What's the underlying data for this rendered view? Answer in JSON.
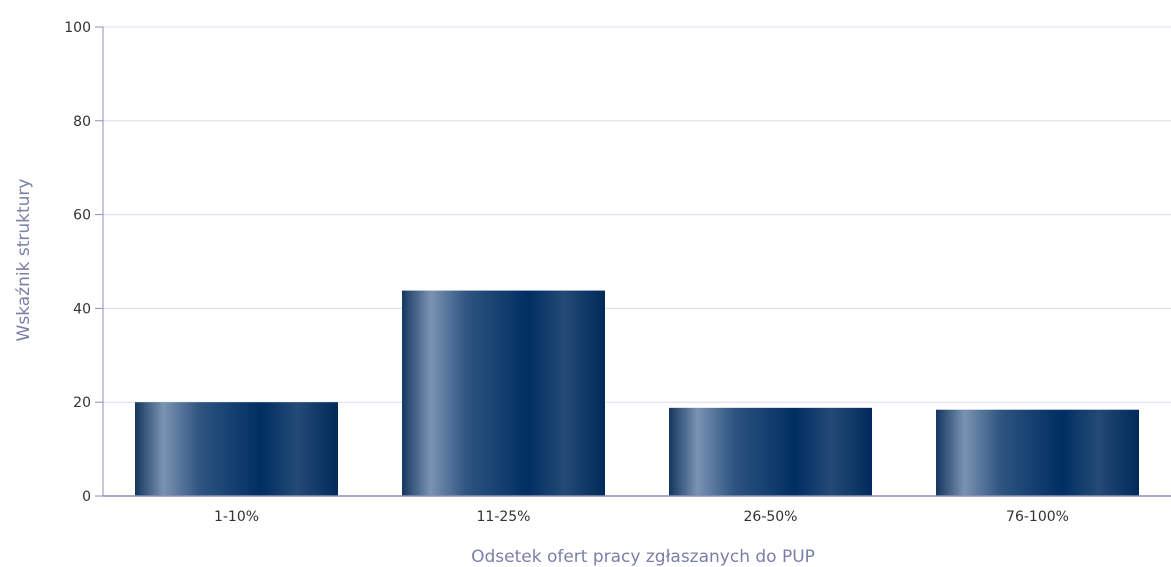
{
  "chart_data": {
    "type": "bar",
    "categories": [
      "1-10%",
      "11-25%",
      "26-50%",
      "76-100%"
    ],
    "values": [
      20.0,
      43.8,
      18.8,
      18.4
    ],
    "xlabel": "Odsetek ofert pracy zgłaszanych do PUP",
    "ylabel": "Wskaźnik struktury",
    "ylim": [
      0,
      100
    ],
    "yticks": [
      0,
      20,
      40,
      60,
      80,
      100
    ],
    "grid": true,
    "legend": "none",
    "colors": {
      "bar_dark": "#002e62",
      "bar_light": "#7a93b2",
      "grid": "#dcdcea",
      "axis": "#8c8fb5",
      "text": "#333333",
      "axis_title": "#7a7fa8"
    }
  }
}
